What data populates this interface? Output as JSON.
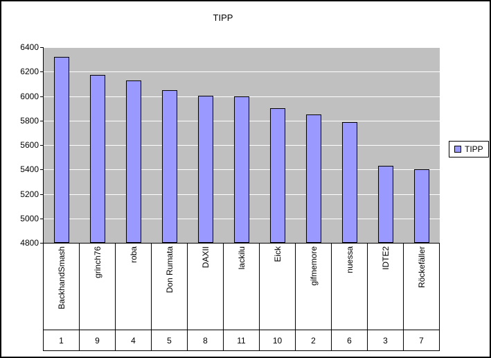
{
  "chart_data": {
    "type": "bar",
    "title": "TIPP",
    "categories": [
      "BackhandSmash",
      "grinch76",
      "roba",
      "Don Rumata",
      "DAXII",
      "lackilu",
      "Eick",
      "gifmemore",
      "nuessa",
      "IDTE2",
      "Röckefäller"
    ],
    "category_numbers": [
      "1",
      "9",
      "4",
      "5",
      "8",
      "11",
      "10",
      "2",
      "6",
      "3",
      "7"
    ],
    "values": [
      6320,
      6175,
      6130,
      6050,
      6005,
      6000,
      5900,
      5850,
      5790,
      5430,
      5400
    ],
    "series_name": "TIPP",
    "xlabel": "",
    "ylabel": "",
    "ylim": [
      4800,
      6400
    ],
    "yticks": [
      6400,
      6200,
      6000,
      5800,
      5600,
      5400,
      5200,
      5000,
      4800
    ],
    "ytick_step": 200,
    "grid": true,
    "legend": [
      "TIPP"
    ],
    "legend_position": "right",
    "bar_color": "#9999FF",
    "bar_border_color": "#000000",
    "plot_bg": "#C0C0C0",
    "gridline_color": "#FFFFFF",
    "chart_bg": "#FFFFFF"
  }
}
